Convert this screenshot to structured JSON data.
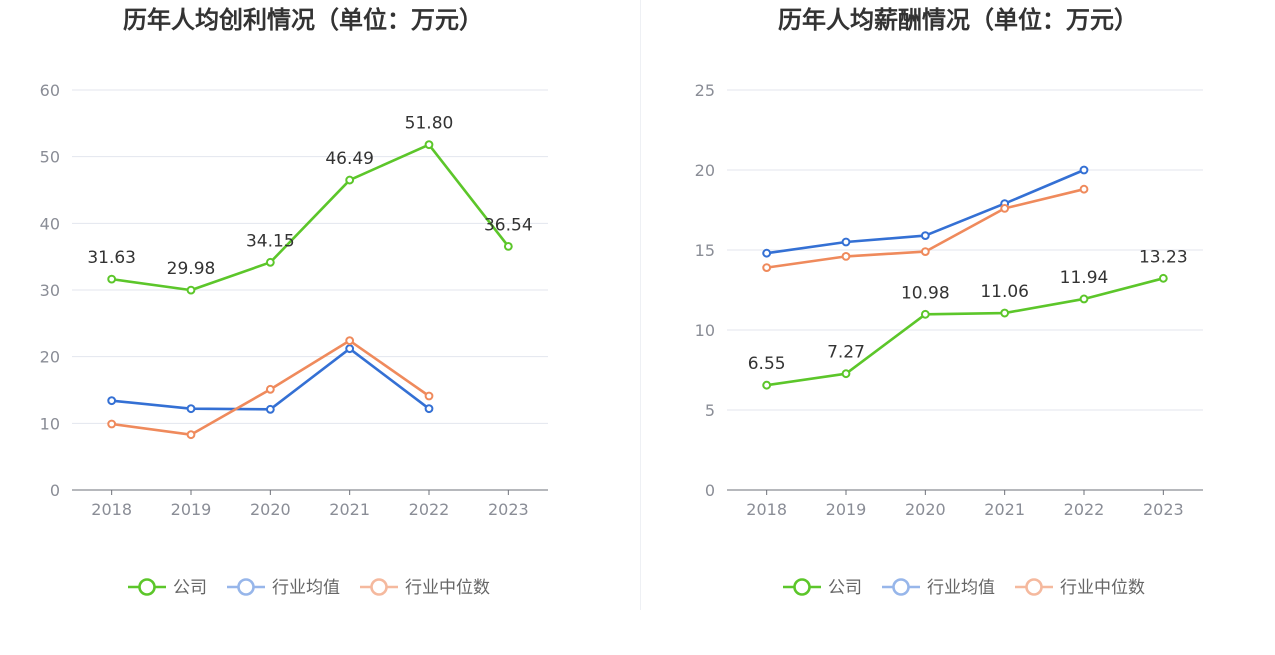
{
  "legend_colors": {
    "公司": "#5cc62a",
    "行业均值": "#3470d4",
    "行业中位数": "#ef8a5c"
  },
  "legend_muted_colors": {
    "公司": "#5cc62a",
    "行业均值": "#97b6ea",
    "行业中位数": "#f5b99e"
  },
  "chart_data": [
    {
      "type": "line",
      "title": "历年人均创利情况（单位：万元）",
      "categories": [
        "2018",
        "2019",
        "2020",
        "2021",
        "2022",
        "2023"
      ],
      "ylim": [
        0,
        60
      ],
      "yticks": [
        0,
        10,
        20,
        30,
        40,
        50,
        60
      ],
      "grid": true,
      "legend_position": "bottom",
      "series": [
        {
          "name": "公司",
          "values": [
            31.63,
            29.98,
            34.15,
            46.49,
            51.8,
            36.54
          ],
          "labels": [
            "31.63",
            "29.98",
            "34.15",
            "46.49",
            "51.80",
            "36.54"
          ]
        },
        {
          "name": "行业均值",
          "values": [
            13.4,
            12.2,
            12.1,
            21.2,
            12.2,
            null
          ]
        },
        {
          "name": "行业中位数",
          "values": [
            9.9,
            8.3,
            15.1,
            22.4,
            14.1,
            null
          ]
        }
      ]
    },
    {
      "type": "line",
      "title": "历年人均薪酬情况（单位：万元）",
      "categories": [
        "2018",
        "2019",
        "2020",
        "2021",
        "2022",
        "2023"
      ],
      "ylim": [
        0,
        25
      ],
      "yticks": [
        0,
        5,
        10,
        15,
        20,
        25
      ],
      "grid": true,
      "legend_position": "bottom",
      "series": [
        {
          "name": "公司",
          "values": [
            6.55,
            7.27,
            10.98,
            11.06,
            11.94,
            13.23
          ],
          "labels": [
            "6.55",
            "7.27",
            "10.98",
            "11.06",
            "11.94",
            "13.23"
          ]
        },
        {
          "name": "行业均值",
          "values": [
            14.8,
            15.5,
            15.9,
            17.9,
            20.0,
            null
          ]
        },
        {
          "name": "行业中位数",
          "values": [
            13.9,
            14.6,
            14.9,
            17.6,
            18.8,
            null
          ]
        }
      ]
    }
  ]
}
